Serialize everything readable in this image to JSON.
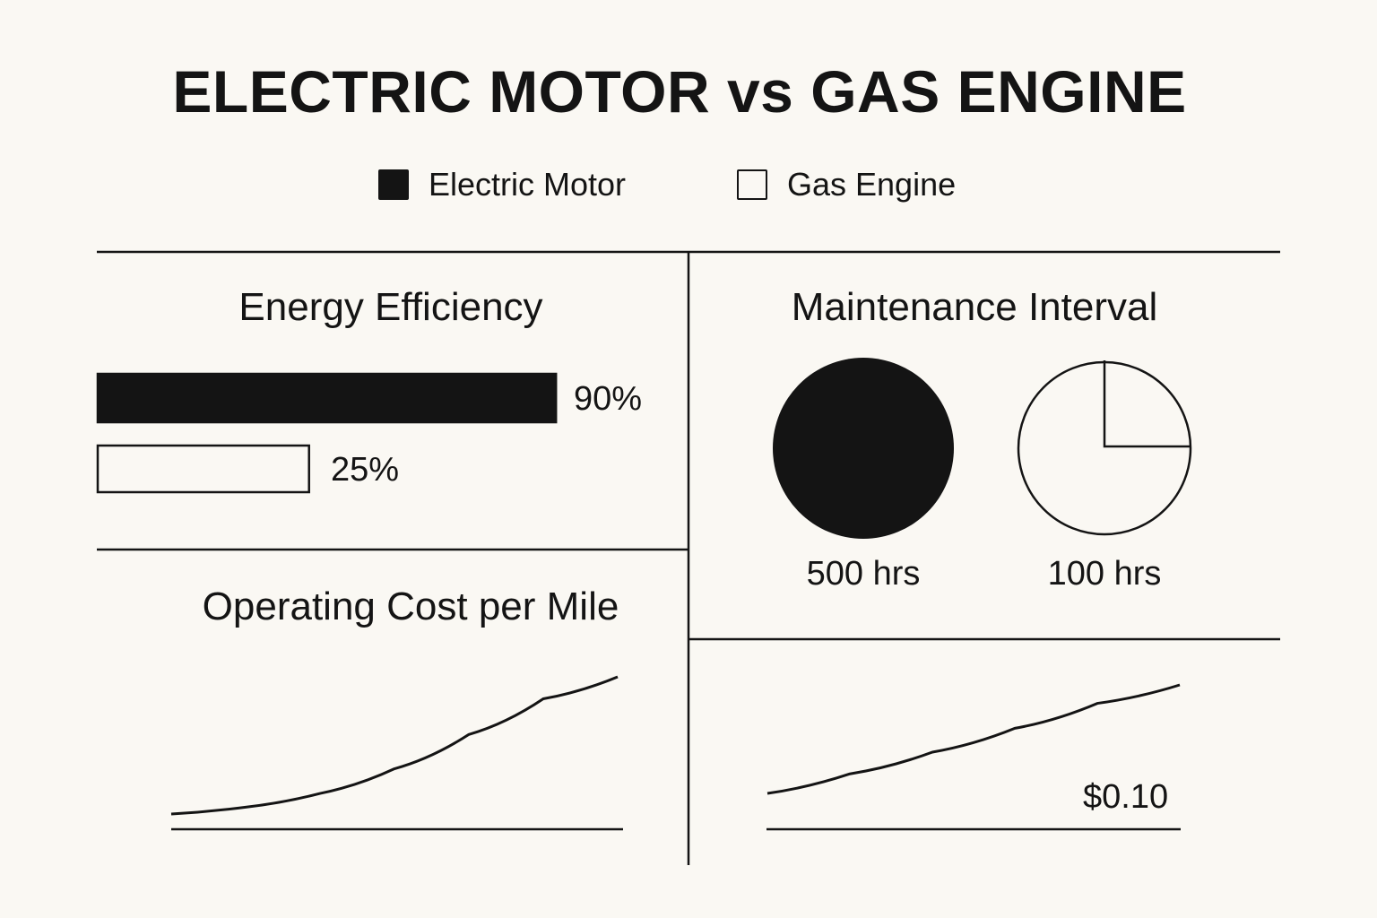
{
  "title": "ELECTRIC MOTOR vs GAS ENGINE",
  "legend": [
    {
      "label": "Electric Motor",
      "swatch": "filled",
      "color": "#141414"
    },
    {
      "label": "Gas Engine",
      "swatch": "outline",
      "color": "#141414"
    }
  ],
  "colors": {
    "background": "#faf8f3",
    "ink": "#141414"
  },
  "chart_data": [
    {
      "type": "bar",
      "orientation": "horizontal",
      "title": "Energy Efficiency",
      "unit": "%",
      "categories": [
        "Electric Motor",
        "Gas Engine"
      ],
      "values": [
        90,
        25
      ],
      "value_labels": [
        "90%",
        "25%"
      ]
    },
    {
      "type": "pie",
      "title": "Maintenance Interval",
      "unit": "hrs",
      "categories": [
        "Electric Motor",
        "Gas Engine"
      ],
      "values": [
        500,
        100
      ],
      "value_labels": [
        "500 hrs",
        "100 hrs"
      ],
      "fill_fractions": [
        1.0,
        0.25
      ]
    },
    {
      "type": "line",
      "title": "Operating Cost per Mile",
      "series": [
        {
          "values": [
            0.0,
            0.05,
            0.15,
            0.33,
            0.58,
            0.84,
            1.0
          ]
        }
      ]
    },
    {
      "type": "line",
      "title": "",
      "annotation": "$0.10",
      "series": [
        {
          "values": [
            0.0,
            0.18,
            0.38,
            0.6,
            0.83,
            1.0
          ]
        }
      ]
    }
  ]
}
